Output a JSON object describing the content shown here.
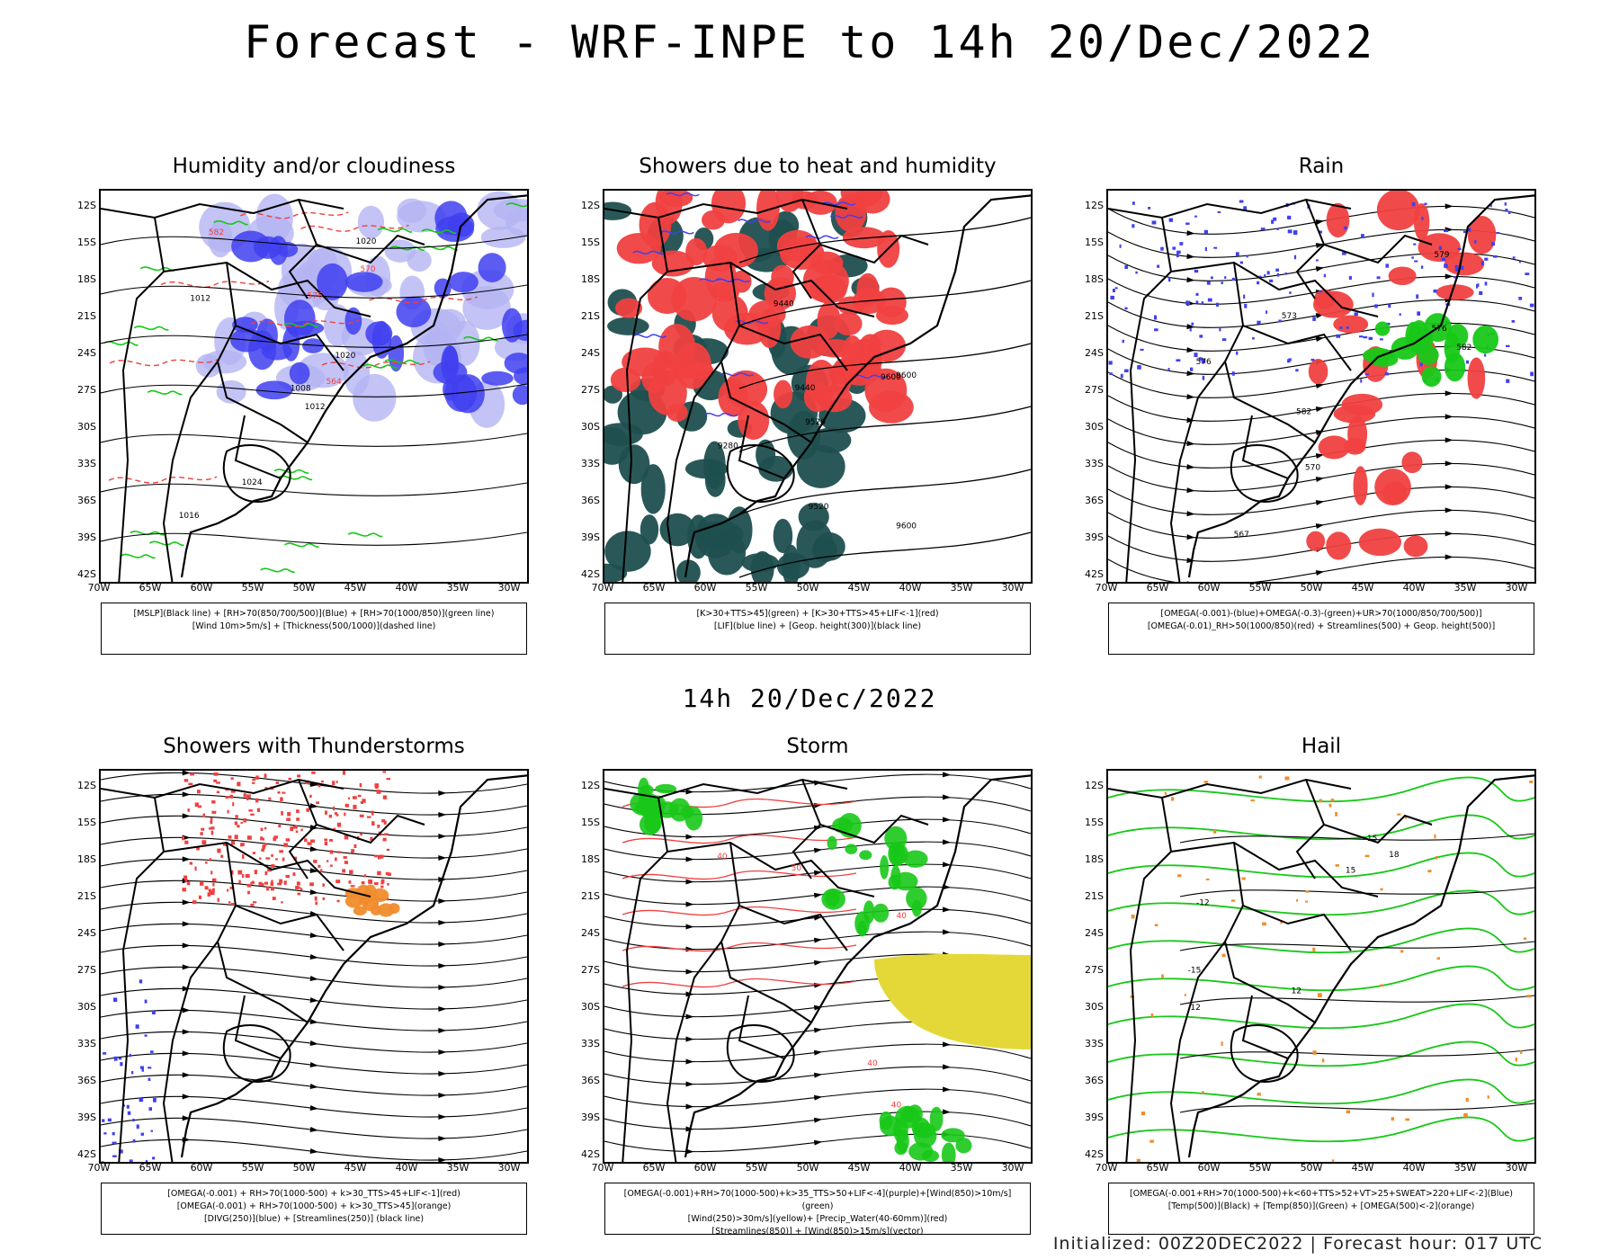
{
  "title": "Forecast - WRF-INPE to 14h 20/Dec/2022",
  "mid_title": "14h 20/Dec/2022",
  "footer": "Initialized: 00Z20DEC2022 | Forecast hour: 017 UTC",
  "lat_labels": [
    "12S",
    "15S",
    "18S",
    "21S",
    "24S",
    "27S",
    "30S",
    "33S",
    "36S",
    "39S",
    "42S"
  ],
  "lon_labels": [
    "70W",
    "65W",
    "60W",
    "55W",
    "50W",
    "45W",
    "40W",
    "35W",
    "30W"
  ],
  "panels": [
    {
      "title": "Humidity and/or cloudiness",
      "legend": [
        "[MSLP](Black line) + [RH>70(850/700/500)](Blue) + [RH>70(1000/850)](green line)",
        "[Wind 10m>5m/s] + [Thickness(500/1000)](dashed line)"
      ],
      "contour_labels": [
        "1012",
        "1012",
        "1008",
        "1016",
        "1020",
        "1024",
        "1020",
        "576",
        "570",
        "564",
        "582"
      ]
    },
    {
      "title": "Showers due to heat and humidity",
      "legend": [
        "[K>30+TTS>45](green) + [K>30+TTS>45+LIF<-1](red)",
        "[LIF](blue line) + [Geop. height(300)](black line)"
      ],
      "contour_labels": [
        "9600",
        "9600",
        "9600",
        "9520",
        "9520",
        "9440",
        "9440",
        "9280"
      ]
    },
    {
      "title": "Rain",
      "legend": [
        "[OMEGA(-0.001)-(blue)+OMEGA(-0.3)-(green)+UR>70(1000/850/700/500)]",
        "[OMEGA(-0.01)_RH>50(1000/850)(red) + Streamlines(500) + Geop. height(500)]"
      ],
      "contour_labels": [
        "582",
        "582",
        "576",
        "576",
        "573",
        "570",
        "567",
        "579"
      ]
    },
    {
      "title": "Showers with Thunderstorms",
      "legend": [
        "[OMEGA(-0.001) + RH>70(1000-500) + k>30_TTS>45+LIF<-1](red)",
        "[OMEGA(-0.001) + RH>70(1000-500) + k>30_TTS>45](orange)",
        "[DIVG(250)](blue) + [Streamlines(250)] (black line)"
      ],
      "contour_labels": []
    },
    {
      "title": "Storm",
      "legend": [
        "[OMEGA(-0.001)+RH>70(1000-500)+k>35_TTS>50+LIF<-4](purple)+[Wind(850)>10m/s](green)",
        "[Wind(250)>30m/s](yellow)+ [Precip_Water(40-60mm)](red)",
        "[Streamlines(850)] + [Wind(850)>15m/s](vector)"
      ],
      "contour_labels": [
        "50",
        "40",
        "40",
        "40",
        "40"
      ]
    },
    {
      "title": "Hail",
      "legend": [
        "[OMEGA(-0.001+RH>70(1000-500)+k<60+TTS>52+VT>25+SWEAT>220+LIF<-2](Blue)",
        "[Temp(500)](Black) + [Temp(850)](Green) + [OMEGA(500)<-2](orange)"
      ],
      "contour_labels": [
        "15",
        "12",
        "-12",
        "-15",
        "12",
        "18",
        "15"
      ]
    }
  ],
  "colors": {
    "coast": "#000000",
    "red": "#f04040",
    "blue": "#4040f0",
    "lightblue": "#b4b4f4",
    "green": "#18c818",
    "darkteal": "#1f4f4f",
    "orange": "#f08c2c",
    "yellow": "#e4d838"
  }
}
